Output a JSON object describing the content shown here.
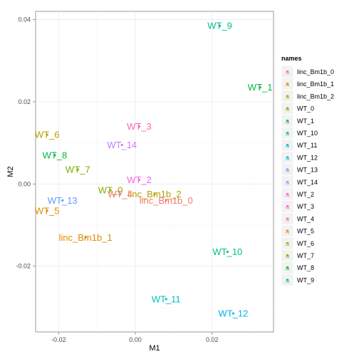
{
  "chart_data": {
    "type": "scatter",
    "title": "",
    "xlabel": "M1",
    "ylabel": "M2",
    "xlim": [
      -0.026,
      0.036
    ],
    "ylim": [
      -0.036,
      0.042
    ],
    "x_ticks": [
      -0.02,
      0.0,
      0.02
    ],
    "x_tick_labels": [
      "-0.02",
      "0.00",
      "0.02"
    ],
    "y_ticks": [
      -0.02,
      0.0,
      0.02,
      0.04
    ],
    "y_tick_labels": [
      "-0.02",
      "0.00",
      "0.02",
      "0.04"
    ],
    "grid": true,
    "legend_title": "names",
    "legend_position": "right",
    "points": [
      {
        "name": "linc_Bm1b_0",
        "x": 0.008,
        "y": -0.004,
        "color": "#F8766D"
      },
      {
        "name": "linc_Bm1b_1",
        "x": -0.013,
        "y": -0.013,
        "color": "#DE8C00"
      },
      {
        "name": "linc_Bm1b_2",
        "x": 0.005,
        "y": -0.0025,
        "color": "#B79F00"
      },
      {
        "name": "WT_0",
        "x": -0.0065,
        "y": -0.0015,
        "color": "#7CAE00"
      },
      {
        "name": "WT_1",
        "x": 0.0325,
        "y": 0.0235,
        "color": "#00BA38"
      },
      {
        "name": "WT_10",
        "x": 0.024,
        "y": -0.0165,
        "color": "#00C08B"
      },
      {
        "name": "WT_11",
        "x": 0.008,
        "y": -0.028,
        "color": "#00BFC4"
      },
      {
        "name": "WT_12",
        "x": 0.0255,
        "y": -0.0315,
        "color": "#00B4F0"
      },
      {
        "name": "WT_13",
        "x": -0.019,
        "y": -0.004,
        "color": "#619CFF"
      },
      {
        "name": "WT_14",
        "x": -0.0035,
        "y": 0.0095,
        "color": "#C77CFF"
      },
      {
        "name": "WT_2",
        "x": 0.001,
        "y": 0.001,
        "color": "#F564E3"
      },
      {
        "name": "WT_3",
        "x": 0.001,
        "y": 0.014,
        "color": "#FF64B0"
      },
      {
        "name": "WT_4",
        "x": -0.004,
        "y": -0.0025,
        "color": "#F8766D"
      },
      {
        "name": "WT_5",
        "x": -0.023,
        "y": -0.0065,
        "color": "#DE8C00"
      },
      {
        "name": "WT_6",
        "x": -0.023,
        "y": 0.012,
        "color": "#B79F00"
      },
      {
        "name": "WT_7",
        "x": -0.015,
        "y": 0.0035,
        "color": "#7CAE00"
      },
      {
        "name": "WT_8",
        "x": -0.021,
        "y": 0.007,
        "color": "#00BA38"
      },
      {
        "name": "WT_9",
        "x": 0.022,
        "y": 0.0385,
        "color": "#00C08B"
      }
    ]
  }
}
